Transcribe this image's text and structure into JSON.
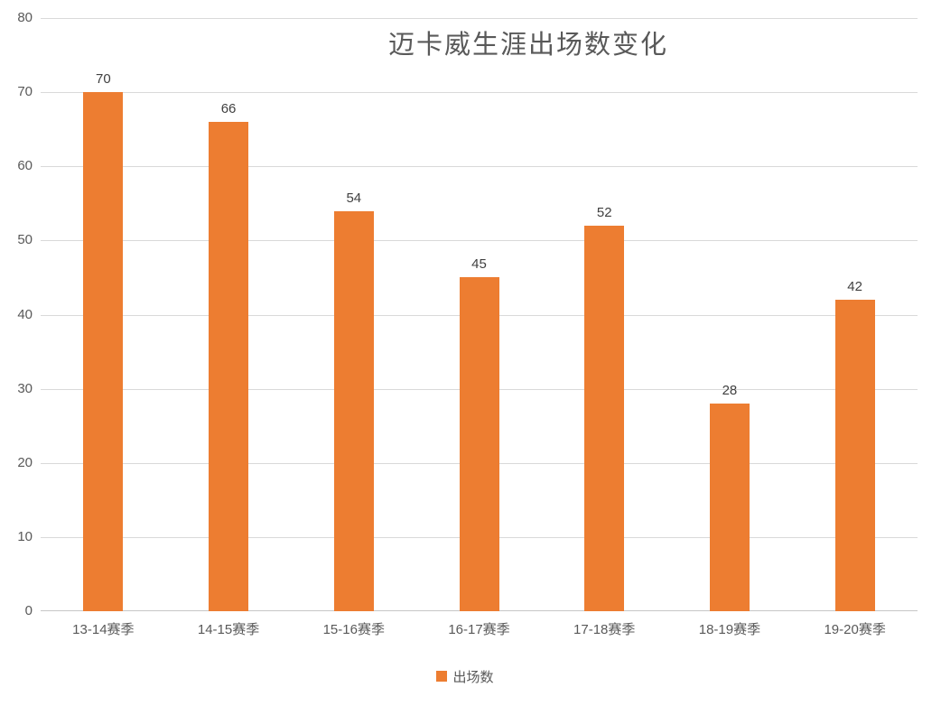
{
  "chart_data": {
    "type": "bar",
    "title": "迈卡威生涯出场数变化",
    "categories": [
      "13-14赛季",
      "14-15赛季",
      "15-16赛季",
      "16-17赛季",
      "17-18赛季",
      "18-19赛季",
      "19-20赛季"
    ],
    "series": [
      {
        "name": "出场数",
        "values": [
          70,
          66,
          54,
          45,
          52,
          28,
          42
        ]
      }
    ],
    "xlabel": "",
    "ylabel": "",
    "ylim": [
      0,
      80
    ],
    "yticks": [
      0,
      10,
      20,
      30,
      40,
      50,
      60,
      70,
      80
    ],
    "grid": true,
    "legend_position": "bottom",
    "colors": {
      "bar": "#ED7D31",
      "gridline": "#D9D9D9",
      "axis_line": "#C6C6C6",
      "title_text": "#595959",
      "axis_text": "#595959",
      "data_label_text": "#404040",
      "background": "#FFFFFF"
    }
  }
}
